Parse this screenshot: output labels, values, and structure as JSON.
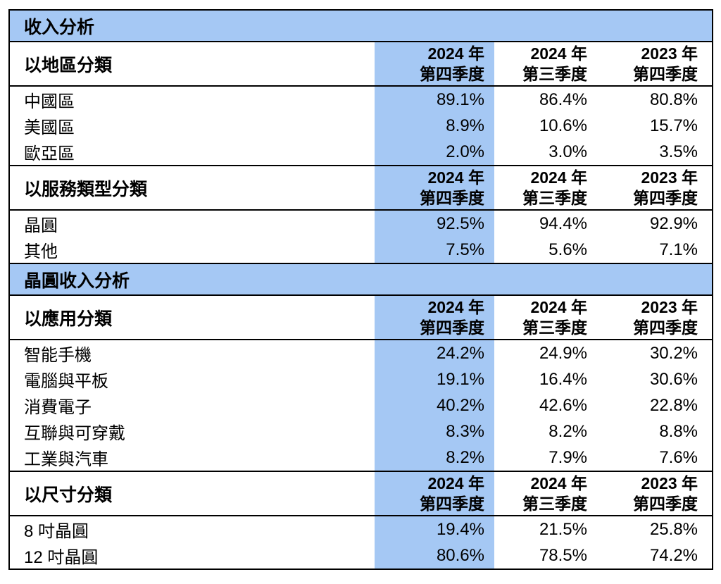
{
  "page": {
    "background": "#ffffff",
    "highlight_blue": "#A5C8F4",
    "border_color": "#000000"
  },
  "table": {
    "title1": "收入分析",
    "title2": "晶圓收入分析",
    "groups": [
      {
        "header": "以地區分類",
        "cols": [
          {
            "l1": "2024 年",
            "l2": "第四季度"
          },
          {
            "l1": "2024 年",
            "l2": "第三季度"
          },
          {
            "l1": "2023 年",
            "l2": "第四季度"
          }
        ],
        "rows": [
          {
            "label": "中國區",
            "v1": "89.1%",
            "v2": "86.4%",
            "v3": "80.8%"
          },
          {
            "label": "美國區",
            "v1": "8.9%",
            "v2": "10.6%",
            "v3": "15.7%"
          },
          {
            "label": "歐亞區",
            "v1": "2.0%",
            "v2": "3.0%",
            "v3": "3.5%"
          }
        ]
      },
      {
        "header": "以服務類型分類",
        "cols": [
          {
            "l1": "2024 年",
            "l2": "第四季度"
          },
          {
            "l1": "2024 年",
            "l2": "第三季度"
          },
          {
            "l1": "2023 年",
            "l2": "第四季度"
          }
        ],
        "rows": [
          {
            "label": "晶圓",
            "v1": "92.5%",
            "v2": "94.4%",
            "v3": "92.9%"
          },
          {
            "label": "其他",
            "v1": "7.5%",
            "v2": "5.6%",
            "v3": "7.1%"
          }
        ]
      },
      {
        "header": "以應用分類",
        "cols": [
          {
            "l1": "2024 年",
            "l2": "第四季度"
          },
          {
            "l1": "2024 年",
            "l2": "第三季度"
          },
          {
            "l1": "2023 年",
            "l2": "第四季度"
          }
        ],
        "rows": [
          {
            "label": "智能手機",
            "v1": "24.2%",
            "v2": "24.9%",
            "v3": "30.2%"
          },
          {
            "label": "電腦與平板",
            "v1": "19.1%",
            "v2": "16.4%",
            "v3": "30.6%"
          },
          {
            "label": "消費電子",
            "v1": "40.2%",
            "v2": "42.6%",
            "v3": "22.8%"
          },
          {
            "label": "互聯與可穿戴",
            "v1": "8.3%",
            "v2": "8.2%",
            "v3": "8.8%"
          },
          {
            "label": "工業與汽車",
            "v1": "8.2%",
            "v2": "7.9%",
            "v3": "7.6%"
          }
        ]
      },
      {
        "header": "以尺寸分類",
        "cols": [
          {
            "l1": "2024 年",
            "l2": "第四季度"
          },
          {
            "l1": "2024 年",
            "l2": "第三季度"
          },
          {
            "l1": "2023 年",
            "l2": "第四季度"
          }
        ],
        "rows": [
          {
            "label": "8 吋晶圓",
            "v1": "19.4%",
            "v2": "21.5%",
            "v3": "25.8%"
          },
          {
            "label": "12 吋晶圓",
            "v1": "80.6%",
            "v2": "78.5%",
            "v3": "74.2%"
          }
        ]
      }
    ]
  }
}
